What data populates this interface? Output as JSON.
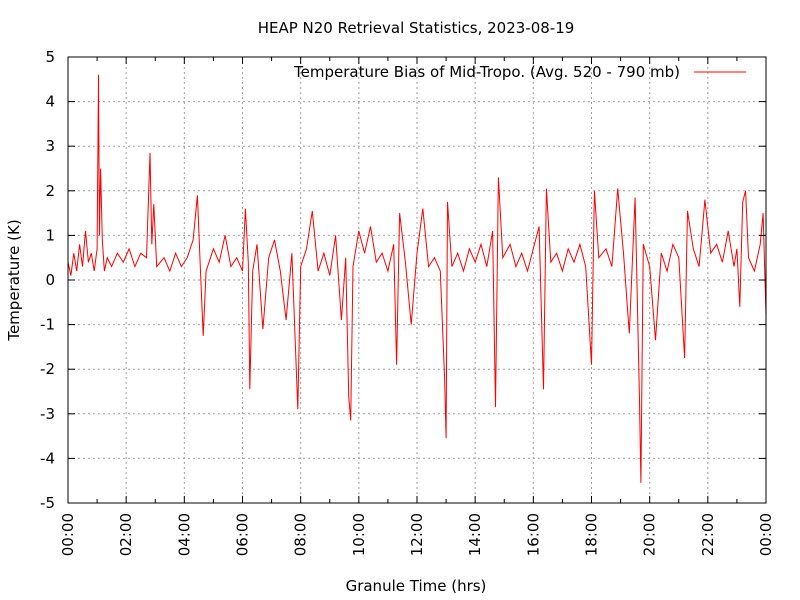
{
  "chart_data": {
    "type": "line",
    "title": "HEAP N20 Retrieval Statistics, 2023-08-19",
    "xlabel": "Granule Time (hrs)",
    "ylabel": "Temperature (K)",
    "xlim": [
      0,
      24
    ],
    "ylim": [
      -5,
      5
    ],
    "x_tick_labels": [
      "00:00",
      "02:00",
      "04:00",
      "06:00",
      "08:00",
      "10:00",
      "12:00",
      "14:00",
      "16:00",
      "18:00",
      "20:00",
      "22:00",
      "00:00"
    ],
    "y_ticks": [
      -5,
      -4,
      -3,
      -2,
      -1,
      0,
      1,
      2,
      3,
      4,
      5
    ],
    "grid": true,
    "legend_position": "top-right",
    "series": [
      {
        "name": "Temperature Bias of Mid-Tropo. (Avg. 520 - 790 mb)",
        "color": "#ff0000",
        "points": [
          [
            0.0,
            0.4
          ],
          [
            0.1,
            0.1
          ],
          [
            0.2,
            0.6
          ],
          [
            0.3,
            0.2
          ],
          [
            0.4,
            0.8
          ],
          [
            0.5,
            0.3
          ],
          [
            0.6,
            1.1
          ],
          [
            0.7,
            0.4
          ],
          [
            0.8,
            0.6
          ],
          [
            0.9,
            0.2
          ],
          [
            1.0,
            0.7
          ],
          [
            1.05,
            4.6
          ],
          [
            1.08,
            1.0
          ],
          [
            1.12,
            2.5
          ],
          [
            1.18,
            0.9
          ],
          [
            1.25,
            0.2
          ],
          [
            1.35,
            0.5
          ],
          [
            1.5,
            0.3
          ],
          [
            1.7,
            0.6
          ],
          [
            1.9,
            0.4
          ],
          [
            2.1,
            0.7
          ],
          [
            2.3,
            0.3
          ],
          [
            2.5,
            0.6
          ],
          [
            2.7,
            0.5
          ],
          [
            2.82,
            2.85
          ],
          [
            2.88,
            0.8
          ],
          [
            2.95,
            1.7
          ],
          [
            3.05,
            0.3
          ],
          [
            3.3,
            0.5
          ],
          [
            3.5,
            0.2
          ],
          [
            3.7,
            0.6
          ],
          [
            3.9,
            0.3
          ],
          [
            4.1,
            0.5
          ],
          [
            4.3,
            0.9
          ],
          [
            4.45,
            1.9
          ],
          [
            4.55,
            0.3
          ],
          [
            4.65,
            -1.25
          ],
          [
            4.75,
            0.2
          ],
          [
            5.0,
            0.7
          ],
          [
            5.2,
            0.4
          ],
          [
            5.4,
            1.0
          ],
          [
            5.6,
            0.3
          ],
          [
            5.8,
            0.5
          ],
          [
            6.0,
            0.2
          ],
          [
            6.1,
            1.6
          ],
          [
            6.2,
            0.4
          ],
          [
            6.25,
            -2.45
          ],
          [
            6.35,
            0.2
          ],
          [
            6.5,
            0.8
          ],
          [
            6.7,
            -1.1
          ],
          [
            6.9,
            0.5
          ],
          [
            7.1,
            0.9
          ],
          [
            7.3,
            0.2
          ],
          [
            7.5,
            -0.9
          ],
          [
            7.7,
            0.6
          ],
          [
            7.9,
            -2.9
          ],
          [
            8.0,
            0.3
          ],
          [
            8.2,
            0.7
          ],
          [
            8.4,
            1.55
          ],
          [
            8.6,
            0.2
          ],
          [
            8.8,
            0.6
          ],
          [
            9.0,
            0.1
          ],
          [
            9.2,
            1.0
          ],
          [
            9.4,
            -0.9
          ],
          [
            9.55,
            0.5
          ],
          [
            9.65,
            -2.6
          ],
          [
            9.72,
            -3.15
          ],
          [
            9.8,
            0.3
          ],
          [
            10.0,
            1.1
          ],
          [
            10.2,
            0.6
          ],
          [
            10.4,
            1.2
          ],
          [
            10.6,
            0.4
          ],
          [
            10.8,
            0.6
          ],
          [
            11.0,
            0.2
          ],
          [
            11.2,
            0.8
          ],
          [
            11.3,
            -1.9
          ],
          [
            11.4,
            1.5
          ],
          [
            11.6,
            0.4
          ],
          [
            11.8,
            -1.0
          ],
          [
            12.0,
            0.6
          ],
          [
            12.2,
            1.6
          ],
          [
            12.4,
            0.3
          ],
          [
            12.6,
            0.5
          ],
          [
            12.8,
            0.2
          ],
          [
            12.95,
            -2.2
          ],
          [
            13.0,
            -3.55
          ],
          [
            13.05,
            1.75
          ],
          [
            13.2,
            0.3
          ],
          [
            13.4,
            0.6
          ],
          [
            13.6,
            0.2
          ],
          [
            13.8,
            0.7
          ],
          [
            14.0,
            0.4
          ],
          [
            14.2,
            0.8
          ],
          [
            14.4,
            0.3
          ],
          [
            14.6,
            1.1
          ],
          [
            14.7,
            -2.85
          ],
          [
            14.8,
            2.3
          ],
          [
            14.95,
            0.5
          ],
          [
            15.2,
            0.8
          ],
          [
            15.4,
            0.3
          ],
          [
            15.6,
            0.6
          ],
          [
            15.8,
            0.2
          ],
          [
            16.0,
            0.7
          ],
          [
            16.2,
            1.2
          ],
          [
            16.35,
            -2.45
          ],
          [
            16.45,
            2.05
          ],
          [
            16.6,
            0.4
          ],
          [
            16.8,
            0.6
          ],
          [
            17.0,
            0.2
          ],
          [
            17.2,
            0.7
          ],
          [
            17.4,
            0.4
          ],
          [
            17.6,
            0.8
          ],
          [
            17.8,
            0.3
          ],
          [
            18.0,
            -1.9
          ],
          [
            18.1,
            2.0
          ],
          [
            18.25,
            0.5
          ],
          [
            18.5,
            0.7
          ],
          [
            18.7,
            0.3
          ],
          [
            18.9,
            2.05
          ],
          [
            19.1,
            0.6
          ],
          [
            19.3,
            -1.2
          ],
          [
            19.5,
            1.85
          ],
          [
            19.65,
            -2.7
          ],
          [
            19.7,
            -4.55
          ],
          [
            19.78,
            0.8
          ],
          [
            20.0,
            0.3
          ],
          [
            20.2,
            -1.35
          ],
          [
            20.4,
            0.6
          ],
          [
            20.6,
            0.2
          ],
          [
            20.8,
            0.8
          ],
          [
            21.0,
            0.5
          ],
          [
            21.2,
            -1.75
          ],
          [
            21.3,
            1.55
          ],
          [
            21.5,
            0.7
          ],
          [
            21.7,
            0.3
          ],
          [
            21.9,
            1.8
          ],
          [
            22.1,
            0.6
          ],
          [
            22.3,
            0.8
          ],
          [
            22.5,
            0.4
          ],
          [
            22.7,
            1.1
          ],
          [
            22.9,
            0.3
          ],
          [
            23.0,
            0.7
          ],
          [
            23.1,
            -0.6
          ],
          [
            23.2,
            1.75
          ],
          [
            23.3,
            2.0
          ],
          [
            23.4,
            0.5
          ],
          [
            23.6,
            0.2
          ],
          [
            23.8,
            0.8
          ],
          [
            23.9,
            1.5
          ],
          [
            24.0,
            -0.8
          ]
        ]
      }
    ]
  }
}
